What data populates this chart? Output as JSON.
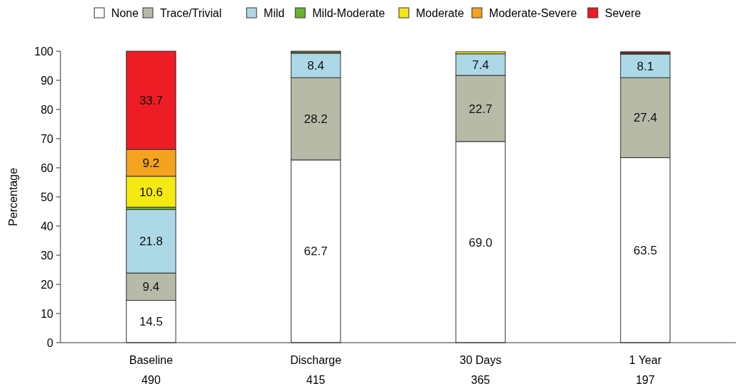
{
  "chart_data": {
    "type": "bar",
    "stacked": true,
    "ylabel": "Percentage",
    "categories": [
      "Baseline\n490",
      "Discharge\n415",
      "30 Days\n365",
      "1 Year\n197"
    ],
    "ylim": [
      0,
      100
    ],
    "yticks": [
      0,
      10,
      20,
      30,
      40,
      50,
      60,
      70,
      80,
      90,
      100
    ],
    "grid": false,
    "legend": "top",
    "series": [
      {
        "name": "None",
        "color": "#ffffff",
        "values": [
          14.5,
          62.7,
          69.0,
          63.5
        ],
        "value_labels": [
          "14.5",
          "62.7",
          "69.0",
          "63.5"
        ]
      },
      {
        "name": "Trace/Trivial",
        "color": "#b8baa8",
        "values": [
          9.4,
          28.2,
          22.7,
          27.4
        ],
        "value_labels": [
          "9.4",
          "28.2",
          "22.7",
          "27.4"
        ]
      },
      {
        "name": "Mild",
        "color": "#add8e6",
        "values": [
          21.8,
          8.4,
          7.4,
          8.1
        ],
        "value_labels": [
          "21.8",
          "8.4",
          "7.4",
          "8.1"
        ]
      },
      {
        "name": "Mild-Moderate",
        "color": "#6ab42d",
        "values": [
          0.8,
          0.4,
          null,
          0.2
        ],
        "value_labels": [
          null,
          null,
          null,
          null
        ]
      },
      {
        "name": "Moderate",
        "color": "#f5e912",
        "values": [
          10.6,
          0.3,
          0.7,
          0.2
        ],
        "value_labels": [
          "10.6",
          null,
          null,
          null
        ]
      },
      {
        "name": "Moderate-Severe",
        "color": "#f5a21e",
        "values": [
          9.2,
          0,
          0,
          null
        ],
        "value_labels": [
          "9.2",
          null,
          null,
          null
        ]
      },
      {
        "name": "Severe",
        "color": "#ee1c25",
        "values": [
          33.7,
          0,
          0,
          0.4
        ],
        "value_labels": [
          "33.7",
          null,
          null,
          null
        ]
      }
    ]
  }
}
